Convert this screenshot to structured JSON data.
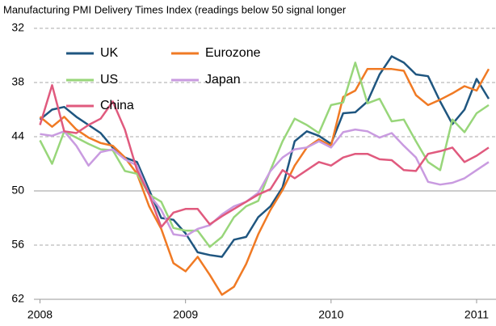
{
  "chart_data": {
    "type": "line",
    "title": "Manufacturing PMI Delivery Times Index (readings below 50 signal longer",
    "x": [
      0,
      1,
      2,
      3,
      4,
      5,
      6,
      7,
      8,
      9,
      10,
      11,
      12,
      13,
      14,
      15,
      16,
      17,
      18,
      19,
      20,
      21,
      22,
      23,
      24,
      25,
      26,
      27,
      28,
      29,
      30,
      31,
      32,
      33,
      34,
      35,
      36,
      37
    ],
    "xlim": [
      -0.5,
      37.6
    ],
    "xticks": [
      {
        "value": 0,
        "label": "2008"
      },
      {
        "value": 12,
        "label": "2009"
      },
      {
        "value": 24,
        "label": "2010"
      },
      {
        "value": 36,
        "label": "2011"
      }
    ],
    "ylim": [
      32,
      62
    ],
    "y_inverted": true,
    "yticks": [
      32,
      38,
      44,
      50,
      56,
      62
    ],
    "grid": true,
    "series": [
      {
        "name": "UK",
        "color": "#1f5680",
        "values": [
          42.1,
          41.0,
          40.7,
          41.8,
          42.7,
          43.6,
          45.2,
          46.3,
          46.8,
          49.9,
          53.0,
          53.2,
          54.7,
          56.8,
          57.1,
          57.3,
          55.4,
          55.1,
          52.9,
          51.7,
          49.6,
          44.5,
          43.4,
          43.9,
          44.8,
          41.4,
          41.3,
          40.1,
          37.1,
          35.1,
          35.8,
          37.1,
          37.3,
          40.1,
          42.6,
          41.0,
          37.6,
          39.8
        ]
      },
      {
        "name": "Eurozone",
        "color": "#f07a24",
        "values": [
          41.8,
          42.9,
          41.8,
          43.2,
          44.1,
          44.7,
          45.0,
          46.3,
          48.1,
          51.7,
          54.2,
          58.0,
          58.9,
          57.3,
          59.3,
          61.5,
          60.6,
          58.1,
          54.8,
          52.1,
          49.9,
          47.2,
          45.2,
          44.3,
          45.0,
          39.6,
          38.9,
          36.5,
          36.5,
          36.5,
          36.7,
          39.4,
          40.5,
          39.9,
          39.2,
          38.4,
          38.9,
          36.5
        ]
      },
      {
        "name": "US",
        "color": "#98d67a",
        "values": [
          44.4,
          47.0,
          43.4,
          44.1,
          44.8,
          45.4,
          45.5,
          47.8,
          48.1,
          50.4,
          51.2,
          54.1,
          54.4,
          54.4,
          56.2,
          55.1,
          52.9,
          51.7,
          51.1,
          47.7,
          44.5,
          42.0,
          42.7,
          43.6,
          40.5,
          40.2,
          35.8,
          40.3,
          39.8,
          42.3,
          42.1,
          44.5,
          46.8,
          47.7,
          42.1,
          43.5,
          41.4,
          40.5
        ]
      },
      {
        "name": "Japan",
        "color": "#c99be0",
        "values": [
          43.7,
          43.9,
          43.4,
          45.0,
          47.2,
          45.7,
          45.4,
          46.5,
          47.2,
          50.4,
          52.1,
          54.8,
          55.0,
          54.2,
          53.8,
          52.6,
          51.7,
          51.2,
          50.2,
          47.8,
          46.3,
          45.4,
          45.2,
          44.5,
          45.2,
          43.5,
          43.2,
          43.4,
          44.1,
          43.6,
          45.0,
          46.3,
          49.0,
          49.3,
          49.1,
          48.6,
          47.7,
          46.8
        ]
      },
      {
        "name": "China",
        "color": "#e05a7e",
        "values": [
          42.7,
          38.3,
          43.4,
          43.6,
          42.7,
          42.0,
          40.1,
          43.2,
          47.7,
          50.4,
          54.0,
          52.4,
          52.0,
          52.0,
          53.7,
          52.8,
          52.0,
          51.2,
          50.4,
          49.8,
          47.7,
          48.6,
          47.7,
          46.8,
          47.2,
          46.3,
          45.9,
          45.9,
          46.5,
          46.6,
          47.7,
          47.8,
          45.9,
          45.6,
          45.2,
          46.8,
          46.1,
          45.2
        ]
      }
    ]
  }
}
